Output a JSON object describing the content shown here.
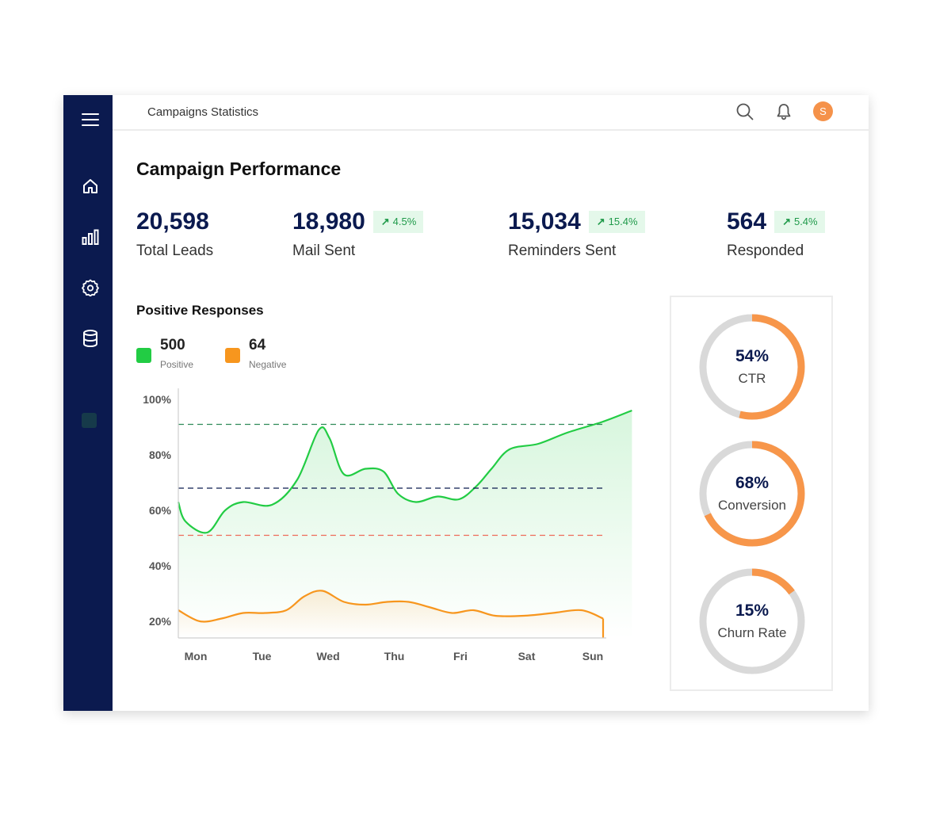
{
  "header": {
    "title": "Campaigns Statistics",
    "avatar_initial": "S"
  },
  "page_title": "Campaign Performance",
  "stats": [
    {
      "value": "20,598",
      "label": "Total Leads"
    },
    {
      "value": "18,980",
      "label": "Mail Sent",
      "change": "4.5%"
    },
    {
      "value": "15,034",
      "label": "Reminders Sent",
      "change": "15.4%"
    },
    {
      "value": "564",
      "label": "Responded",
      "change": "5.4%"
    }
  ],
  "positive_responses": {
    "title": "Positive Responses",
    "legend": [
      {
        "value": "500",
        "label": "Positive",
        "color": "#22cc44"
      },
      {
        "value": "64",
        "label": "Negative",
        "color": "#f7961e"
      }
    ]
  },
  "chart_data": {
    "type": "line",
    "x": [
      "Mon",
      "Tue",
      "Wed",
      "Thu",
      "Fri",
      "Sat",
      "Sun"
    ],
    "y_ticks": [
      "100%",
      "80%",
      "60%",
      "40%",
      "20%"
    ],
    "ylim": [
      14,
      104
    ],
    "series": [
      {
        "name": "Positive",
        "color": "#22cc44",
        "x": [
          0,
          0.1,
          0.4,
          0.65,
          0.9,
          1.3,
          1.65,
          1.95,
          2.1,
          2.3,
          2.6,
          2.85,
          3.05,
          3.3,
          3.6,
          3.9,
          4.15,
          4.35,
          4.6,
          5.0,
          5.4,
          5.9,
          6.3
        ],
        "y": [
          63,
          56,
          52,
          60,
          63,
          62,
          71,
          89,
          86,
          73,
          75,
          74,
          66,
          63,
          65,
          64,
          69,
          75,
          82,
          84,
          88,
          92,
          96
        ]
      },
      {
        "name": "Negative",
        "color": "#f7961e",
        "x": [
          0,
          0.3,
          0.6,
          0.9,
          1.2,
          1.5,
          1.75,
          2.0,
          2.3,
          2.6,
          2.9,
          3.2,
          3.5,
          3.8,
          4.1,
          4.4,
          4.8,
          5.2,
          5.6,
          5.9
        ],
        "y": [
          24,
          20,
          21,
          23,
          23,
          24,
          29,
          31,
          27,
          26,
          27,
          27,
          25,
          23,
          24,
          22,
          22,
          23,
          24,
          21
        ]
      }
    ],
    "reference_lines": [
      {
        "value": 91,
        "color": "#2e8b57"
      },
      {
        "value": 68,
        "color": "#0b1a4f"
      },
      {
        "value": 51,
        "color": "#ef6b5a"
      }
    ]
  },
  "gauges": [
    {
      "value": "54%",
      "label": "CTR",
      "percent": 54
    },
    {
      "value": "68%",
      "label": "Conversion",
      "percent": 68
    },
    {
      "value": "15%",
      "label": "Churn Rate",
      "percent": 15
    }
  ],
  "colors": {
    "sidebar": "#0b1a4f",
    "accent": "#f7964a",
    "positive": "#22cc44",
    "negative": "#f7961e"
  }
}
